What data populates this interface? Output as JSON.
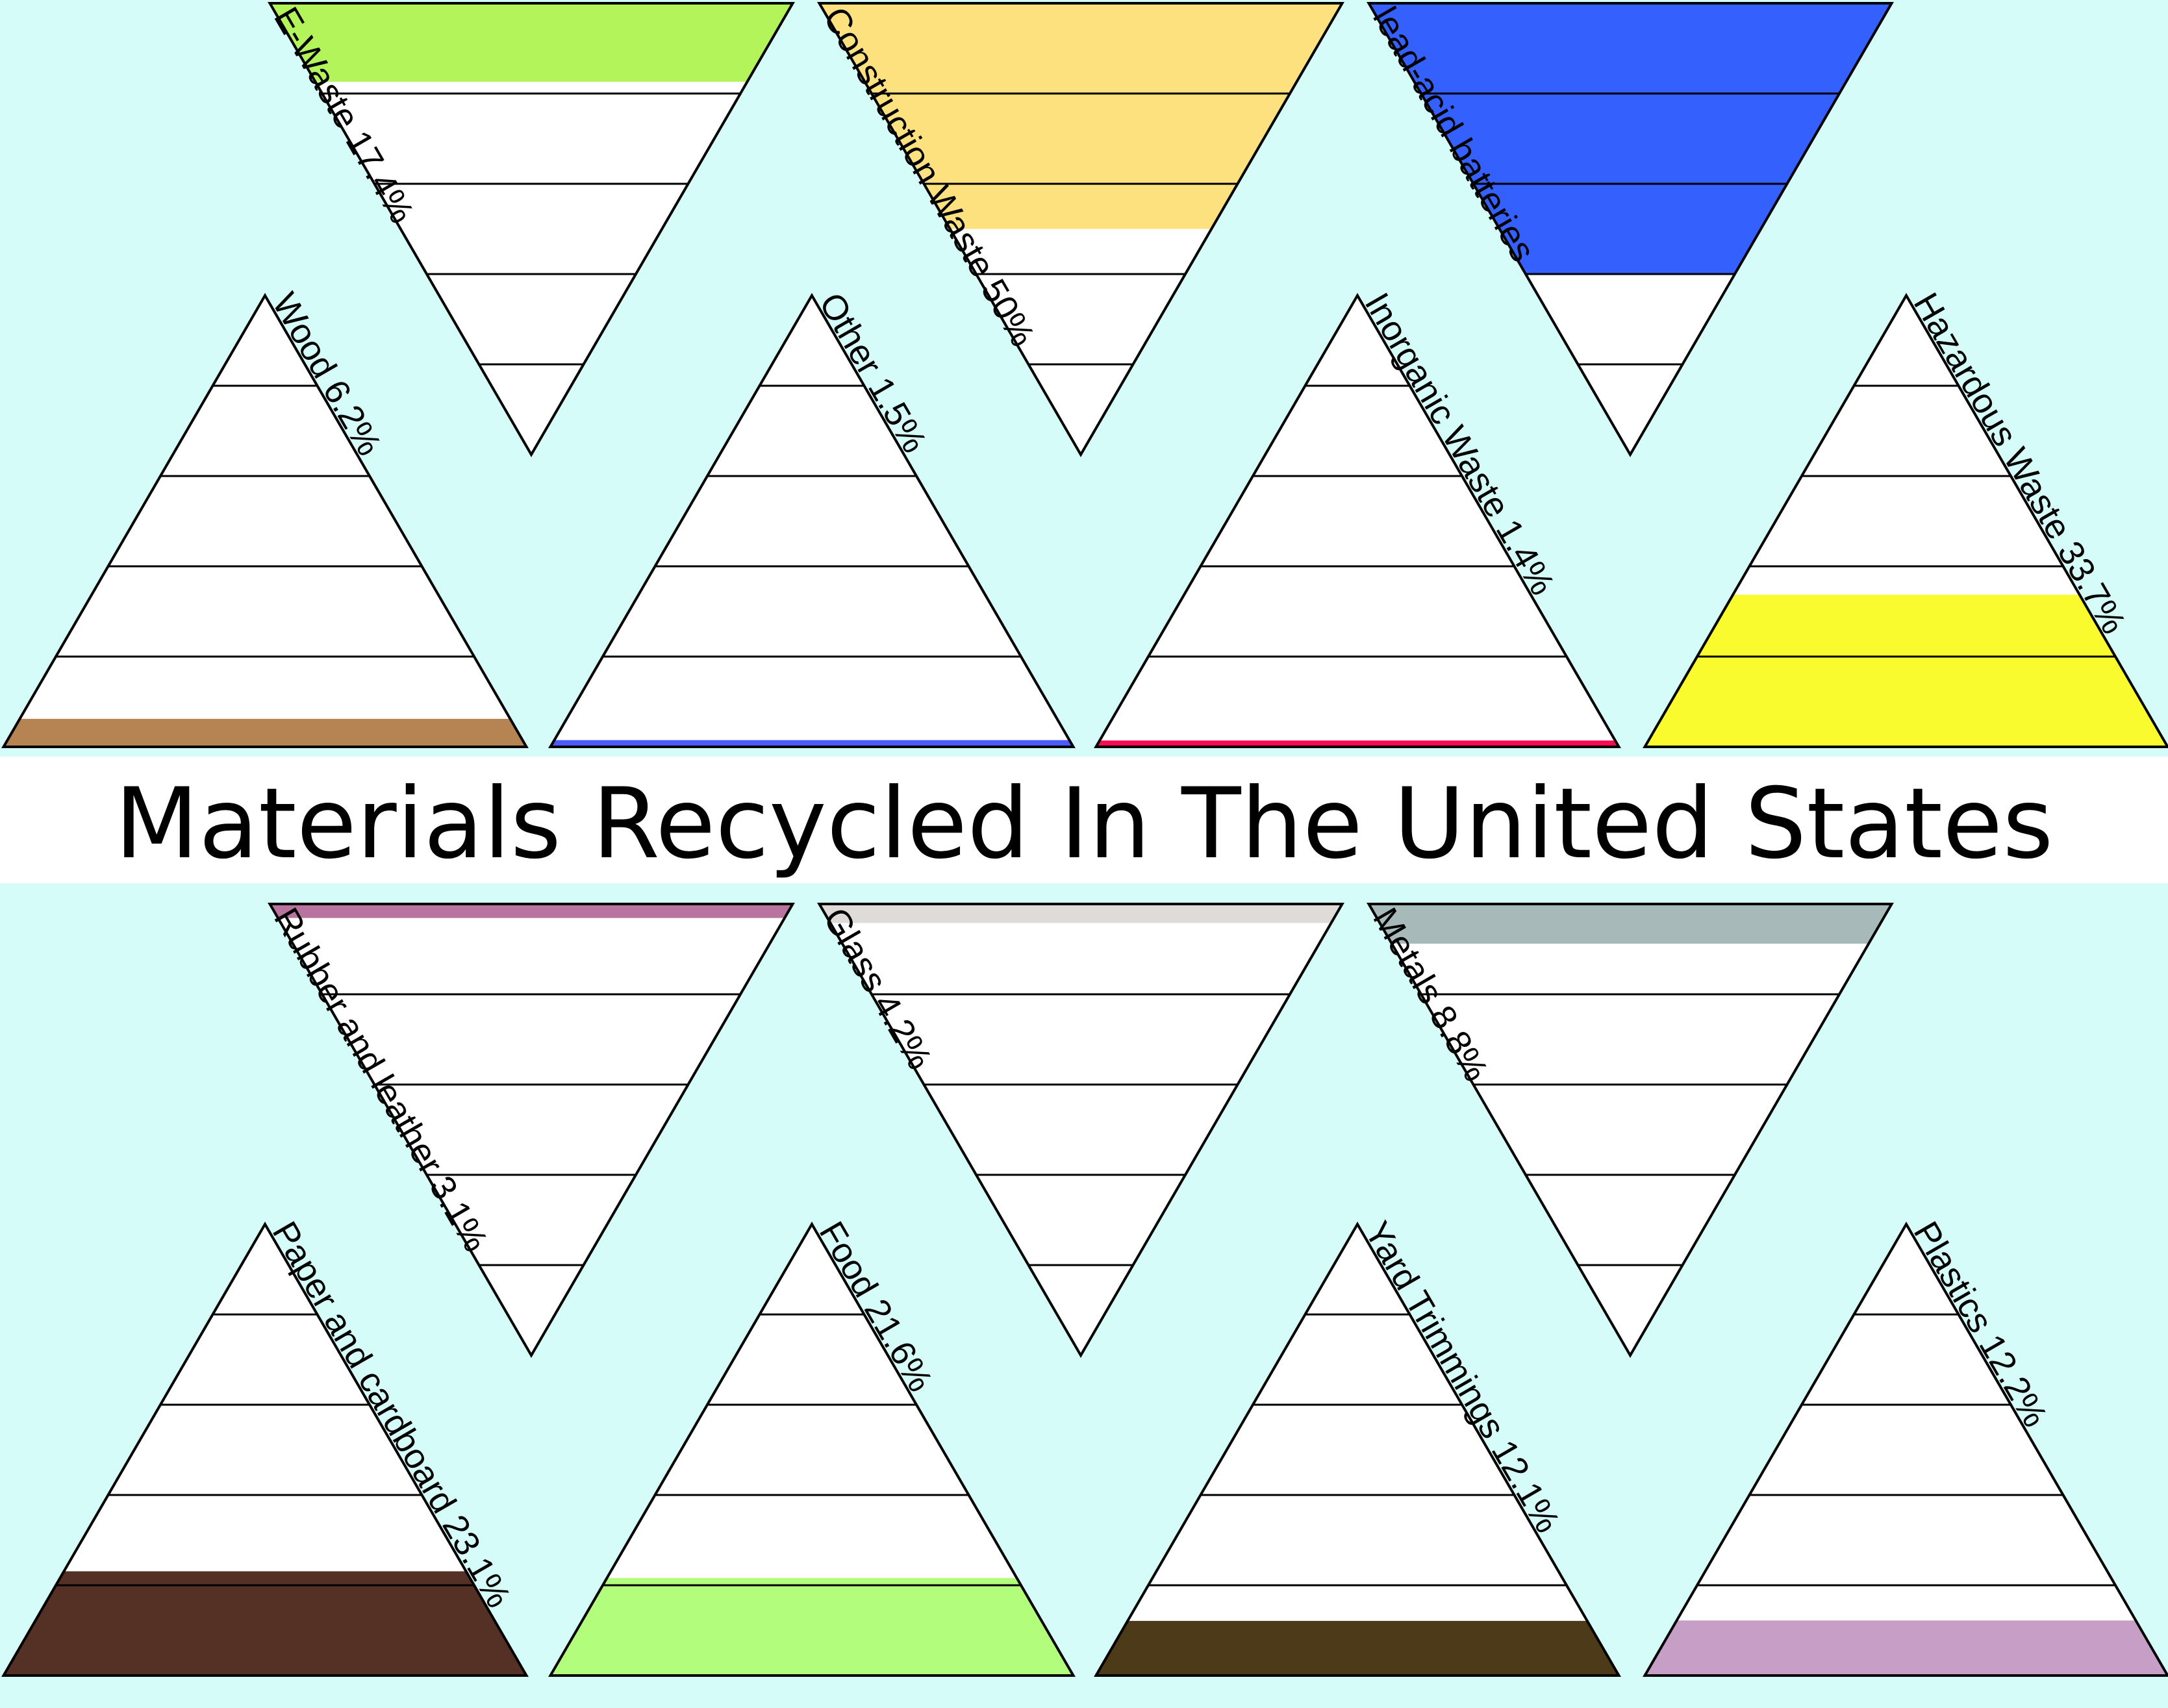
{
  "title": "Materials Recycled In The United States",
  "colors": {
    "background": "#d5fcf9",
    "outline": "#000000",
    "empty": "#ffffff"
  },
  "chart_data": {
    "type": "pictograph",
    "title": "Materials Recycled In The United States",
    "unit": "%",
    "levels_per_triangle": 5,
    "items": [
      {
        "label": "E-Waste 17.4%",
        "value": 17.4,
        "color": "#b2f45a",
        "pointing": "down"
      },
      {
        "label": "Construction Waste 50%",
        "value": 50,
        "color": "#fde17f",
        "pointing": "down"
      },
      {
        "label": "lead-acid batteries",
        "value": null,
        "color": "#3461fe",
        "pointing": "down"
      },
      {
        "label": "Wood 6.2%",
        "value": 6.2,
        "color": "#b58452",
        "pointing": "up"
      },
      {
        "label": "Other 1.5%",
        "value": 1.5,
        "color": "#4b5bfd",
        "pointing": "up"
      },
      {
        "label": "Inorganic Waste 1.4%",
        "value": 1.4,
        "color": "#fc0b55",
        "pointing": "up"
      },
      {
        "label": "Hazardous Waste 33.7%",
        "value": 33.7,
        "color": "#f9fb2e",
        "pointing": "up"
      },
      {
        "label": "Rubber and leather 3.1%",
        "value": 3.1,
        "color": "#b8749e",
        "pointing": "down"
      },
      {
        "label": "Glass 4.2%",
        "value": 4.2,
        "color": "#dedbd9",
        "pointing": "down"
      },
      {
        "label": "Metals 8.8%",
        "value": 8.8,
        "color": "#a7b9b9",
        "pointing": "down"
      },
      {
        "label": "Paper and cardboard 23.1%",
        "value": 23.1,
        "color": "#553024",
        "pointing": "up"
      },
      {
        "label": "Food 21.6%",
        "value": 21.6,
        "color": "#b2fd7b",
        "pointing": "up"
      },
      {
        "label": "Yard Trimmings 12.1%",
        "value": 12.1,
        "color": "#4c3a18",
        "pointing": "up"
      },
      {
        "label": "Plastics 12.2%",
        "value": 12.2,
        "color": "#c79fc6",
        "pointing": "up"
      }
    ]
  }
}
